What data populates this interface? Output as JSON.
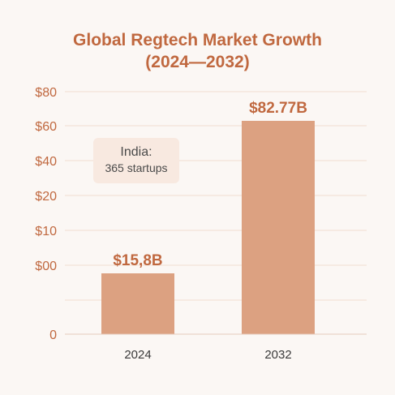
{
  "chart_data": {
    "type": "bar",
    "title_line1": "Global Regtech Market Growth",
    "title_line2": "(2024—2032)",
    "categories": [
      "2024",
      "2032"
    ],
    "values": [
      15.8,
      82.77
    ],
    "value_labels": [
      "$15,8B",
      "$82.77B"
    ],
    "yticks": [
      "$80",
      "$60",
      "$40",
      "$20",
      "$10",
      "$00",
      "0"
    ],
    "annotation": {
      "line1": "India:",
      "line2": "365 startups"
    },
    "grid": true,
    "bar_color": "#dca181",
    "accent_color": "#c0683f"
  }
}
